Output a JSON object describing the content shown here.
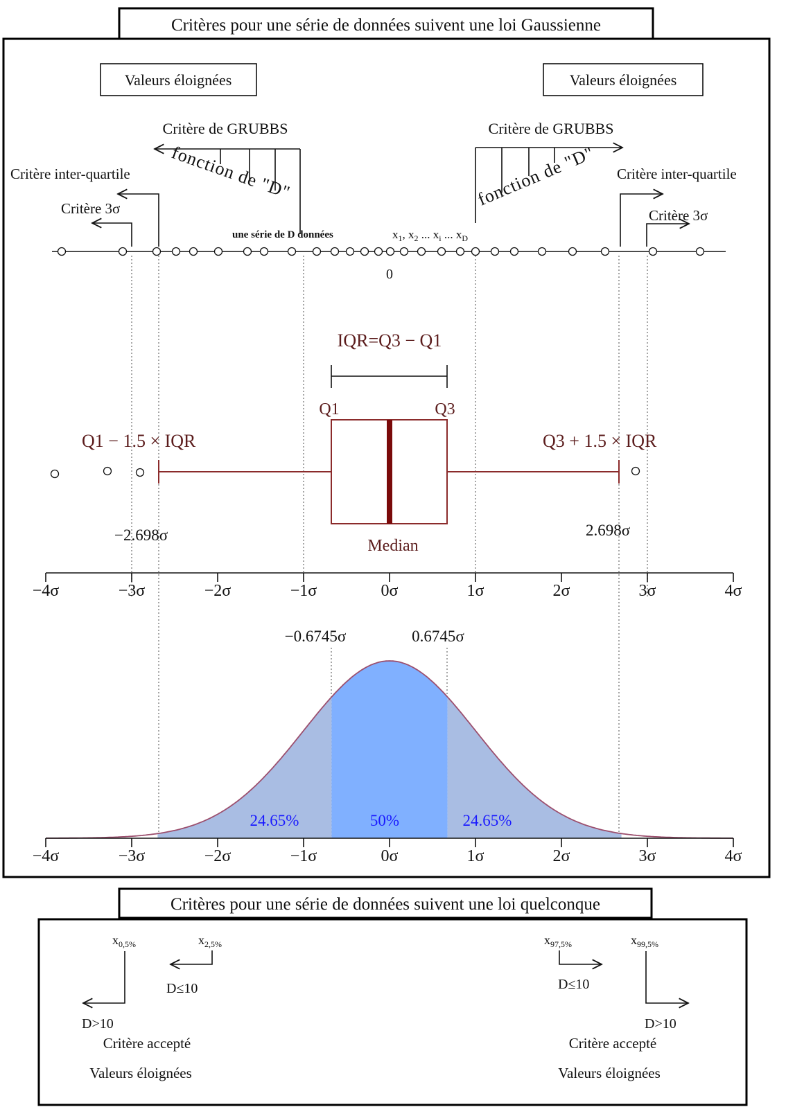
{
  "gauss": {
    "title": "Critères pour une série de données suivent une loi Gaussienne",
    "outliers_left": "Valeurs éloignées",
    "outliers_right": "Valeurs éloignées",
    "grubbs_left": {
      "label": "Critère de GRUBBS",
      "function": "fonction de \"D\""
    },
    "grubbs_right": {
      "label": "Critère de GRUBBS",
      "function": "fonction de \"D\""
    },
    "iqr_criterion_left": "Critère inter-quartile",
    "iqr_criterion_right": "Critère inter-quartile",
    "sigma3_left": "Critère 3σ",
    "sigma3_right": "Critère 3σ",
    "series_label": "une série de D données",
    "series_vars": [
      {
        "base": "x",
        "sub": "1",
        "after": ", "
      },
      {
        "base": "x",
        "sub": "2",
        "after": " ... "
      },
      {
        "base": "x",
        "sub": "i",
        "after": " ... "
      },
      {
        "base": "x",
        "sub": "D"
      }
    ],
    "zero_label": "0"
  },
  "boxplot": {
    "iqr_formula": "IQR=Q3 − Q1",
    "q1": "Q1",
    "q3": "Q3",
    "lower_fence": "Q1 − 1.5 × IQR",
    "upper_fence": "Q3 + 1.5 × IQR",
    "lower_fence_sigma": "−2.698σ",
    "upper_fence_sigma": "2.698σ",
    "median": "Median"
  },
  "axis_ticks": [
    "−4σ",
    "−3σ",
    "−2σ",
    "−1σ",
    "0σ",
    "1σ",
    "2σ",
    "3σ",
    "4σ"
  ],
  "density": {
    "q1_sigma": "−0.6745σ",
    "q3_sigma": "0.6745σ",
    "pct_left": "24.65%",
    "pct_center": "50%",
    "pct_right": "24.65%"
  },
  "general": {
    "title": "Critères pour une série de données suivent une loi quelconque",
    "left": {
      "outer": {
        "base": "x",
        "sub": "0,5%",
        "rule": "D>10"
      },
      "inner": {
        "base": "x",
        "sub": "2,5%",
        "rule": "D≤10"
      },
      "accepted": "Critère accepté",
      "outliers": "Valeurs éloignées"
    },
    "right": {
      "inner": {
        "base": "x",
        "sub": "97,5%",
        "rule": "D≤10"
      },
      "outer": {
        "base": "x",
        "sub": "99,5%",
        "rule": "D>10"
      },
      "accepted": "Critère accepté",
      "outliers": "Valeurs éloignées"
    }
  },
  "colors": {
    "box": "#8b2b2b",
    "median": "#7a0a0a",
    "boxplot_text": "#5b1c1c",
    "tail_fill": "#a9bde3",
    "center_fill": "#80b0ff",
    "curve": "#9c4f6e",
    "pct_text": "#1a1aff"
  }
}
